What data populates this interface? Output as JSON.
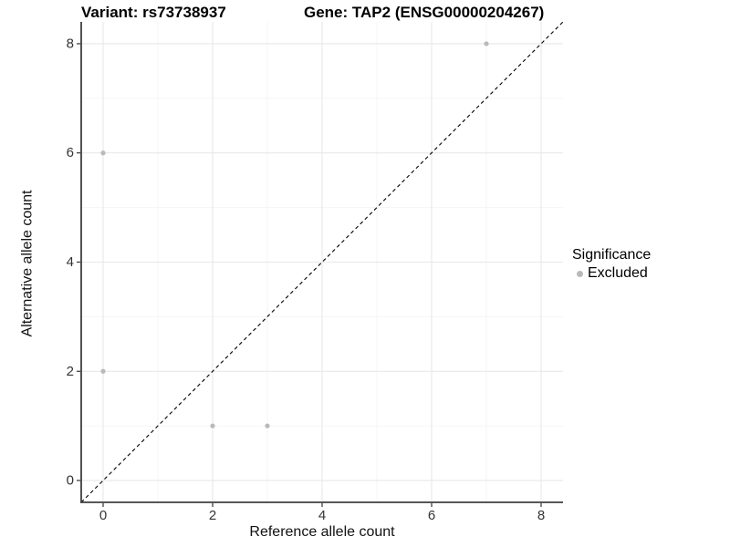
{
  "figure": {
    "title_left": "Variant: rs73738937",
    "title_right": "Gene: TAP2 (ENSG00000204267)"
  },
  "chart_data": {
    "type": "scatter",
    "xlabel": "Reference allele count",
    "ylabel": "Alternative allele count",
    "xlim": [
      -0.4,
      8.4
    ],
    "ylim": [
      -0.4,
      8.4
    ],
    "x_major_ticks": [
      0,
      2,
      4,
      6,
      8
    ],
    "y_major_ticks": [
      0,
      2,
      4,
      6,
      8
    ],
    "x_minor_ticks": [
      1,
      3,
      5,
      7
    ],
    "y_minor_ticks": [
      1,
      3,
      5,
      7
    ],
    "series": [
      {
        "name": "Excluded",
        "color": "#b9b9b9",
        "points": [
          [
            0,
            2
          ],
          [
            0,
            6
          ],
          [
            2,
            1
          ],
          [
            3,
            1
          ],
          [
            7,
            8
          ]
        ]
      }
    ],
    "reference_line": {
      "type": "identity",
      "from": [
        -0.4,
        -0.4
      ],
      "to": [
        8.4,
        8.4
      ],
      "style": "dashed",
      "color": "#000000"
    },
    "grid": {
      "major_color": "#e8e8e8",
      "minor_color": "#f4f4f4",
      "background": "#ffffff"
    },
    "axis_color": "#3f3f3f",
    "tick_color": "#333333",
    "tick_label_color": "#333333",
    "legend": {
      "title": "Significance",
      "position": "right",
      "items": [
        {
          "label": "Excluded",
          "color": "#b9b9b9"
        }
      ]
    }
  }
}
